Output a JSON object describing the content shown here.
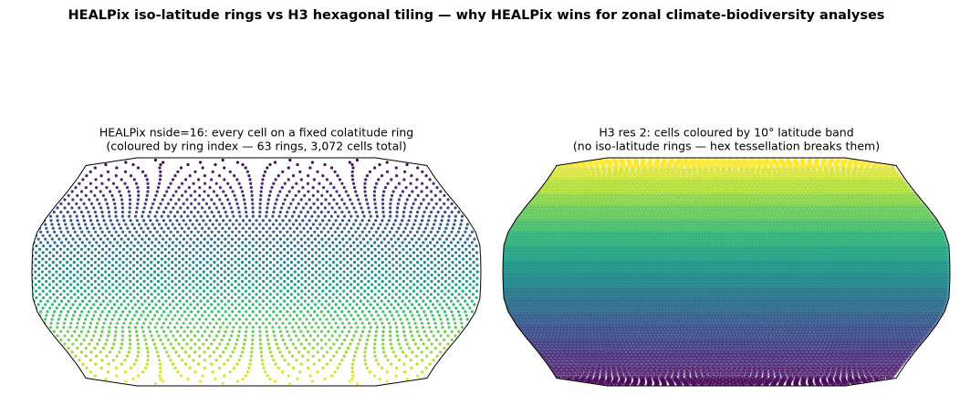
{
  "title": "HEALPix iso-latitude rings vs H3 hexagonal tiling — why HEALPix wins for zonal climate-biodiversity analyses",
  "panels": [
    {
      "title_line1": "HEALPix nside=16: every cell on a fixed colatitude ring",
      "title_line2": "(coloured by ring index — 63 rings, 3,072 cells total)"
    },
    {
      "title_line1": "H3 res 2: cells coloured by 10° latitude band",
      "title_line2": "(no iso-latitude rings — hex tessellation breaks them)"
    }
  ]
}
